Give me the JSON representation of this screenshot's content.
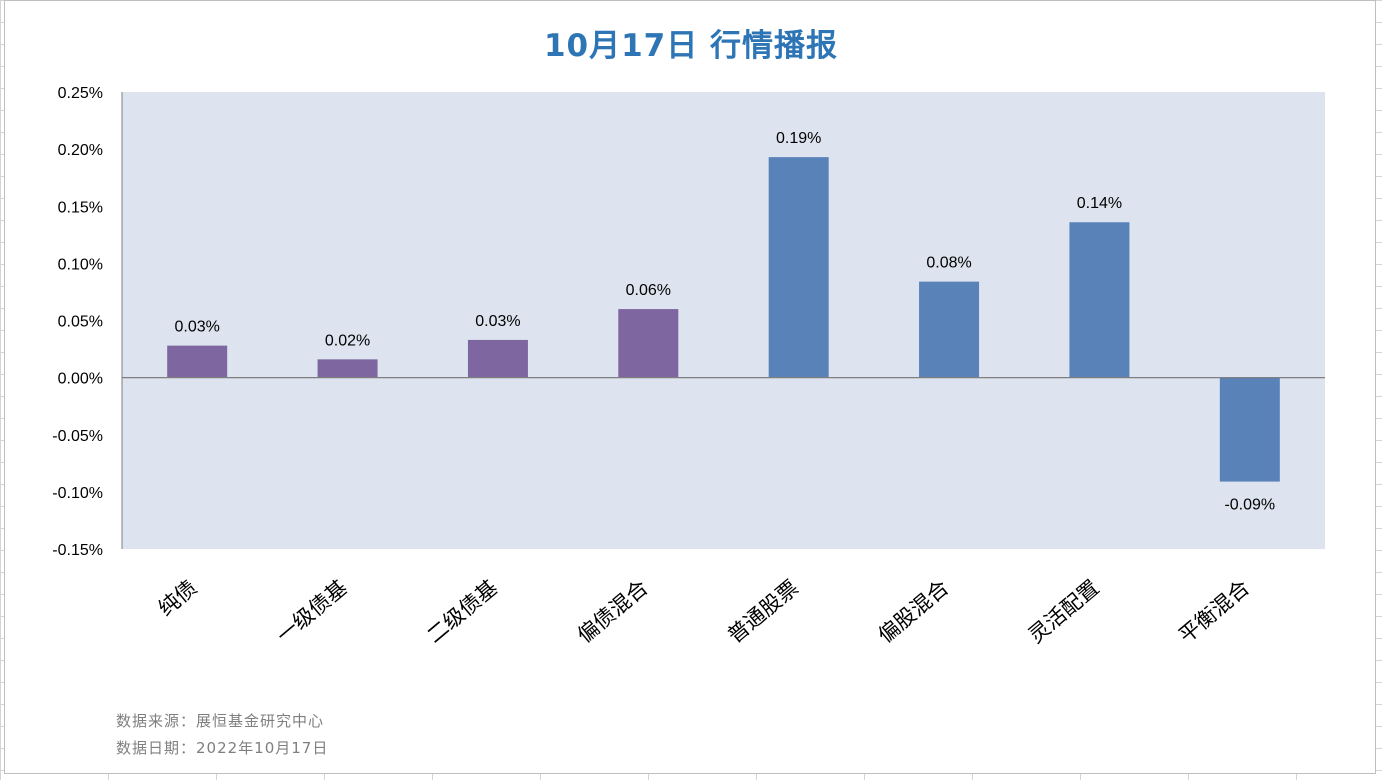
{
  "title": "10月17日  行情播报",
  "source": "数据来源：展恒基金研究中心",
  "date_note": "数据日期：2022年10月17日",
  "colors": {
    "title": "#2e75b6",
    "plot_bg": "#dde4ef",
    "bond": "#7e66a0",
    "equity": "#5982b9"
  },
  "chart_data": {
    "type": "bar",
    "title": "10月17日  行情播报",
    "categories": [
      "纯债",
      "一级债基",
      "二级债基",
      "偏债混合",
      "普通股票",
      "偏股混合",
      "灵活配置",
      "平衡混合"
    ],
    "values": [
      0.028,
      0.016,
      0.033,
      0.06,
      0.193,
      0.084,
      0.136,
      -0.091
    ],
    "value_labels": [
      "0.03%",
      "0.02%",
      "0.03%",
      "0.06%",
      "0.19%",
      "0.08%",
      "0.14%",
      "-0.09%"
    ],
    "bar_colors": [
      "#7e66a0",
      "#7e66a0",
      "#7e66a0",
      "#7e66a0",
      "#5982b9",
      "#5982b9",
      "#5982b9",
      "#5982b9"
    ],
    "unit": "%",
    "ylim": [
      -0.15,
      0.25
    ],
    "yticks": [
      0.25,
      0.2,
      0.15,
      0.1,
      0.05,
      0.0,
      -0.05,
      -0.1,
      -0.15
    ],
    "ytick_labels": [
      "0.25%",
      "0.20%",
      "0.15%",
      "0.10%",
      "0.05%",
      "0.00%",
      "-0.05%",
      "-0.10%",
      "-0.15%"
    ],
    "xlabel": "",
    "ylabel": "",
    "grid": false,
    "legend": "none"
  }
}
